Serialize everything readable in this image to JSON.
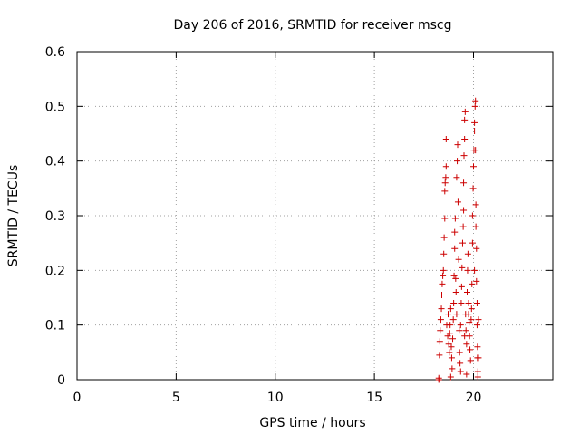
{
  "chart_data": {
    "type": "scatter",
    "title": "Day 206 of 2016, SRMTID for receiver mscg",
    "xlabel": "GPS time / hours",
    "ylabel": "SRMTID / TECUs",
    "xlim": [
      0,
      24
    ],
    "ylim": [
      0,
      0.6
    ],
    "xticks": [
      0,
      5,
      10,
      15,
      20
    ],
    "xtick_labels": [
      "0",
      "5",
      "10",
      "15",
      "20"
    ],
    "yticks": [
      0,
      0.1,
      0.2,
      0.3,
      0.4,
      0.5,
      0.6
    ],
    "ytick_labels": [
      "0",
      "0.1",
      "0.2",
      "0.3",
      "0.4",
      "0.5",
      "0.6"
    ],
    "grid": true,
    "marker": "+",
    "color": "#cc0000",
    "series": [
      {
        "name": "SRMTID",
        "points": [
          [
            18.25,
            0.0
          ],
          [
            18.25,
            0.003
          ],
          [
            18.28,
            0.045
          ],
          [
            18.3,
            0.07
          ],
          [
            18.32,
            0.09
          ],
          [
            18.35,
            0.11
          ],
          [
            18.38,
            0.13
          ],
          [
            18.4,
            0.155
          ],
          [
            18.42,
            0.175
          ],
          [
            18.45,
            0.19
          ],
          [
            18.48,
            0.2
          ],
          [
            18.5,
            0.23
          ],
          [
            18.52,
            0.26
          ],
          [
            18.55,
            0.295
          ],
          [
            18.55,
            0.345
          ],
          [
            18.57,
            0.36
          ],
          [
            18.6,
            0.37
          ],
          [
            18.62,
            0.39
          ],
          [
            18.62,
            0.44
          ],
          [
            18.65,
            0.1
          ],
          [
            18.7,
            0.08
          ],
          [
            18.72,
            0.12
          ],
          [
            18.75,
            0.065
          ],
          [
            18.78,
            0.05
          ],
          [
            18.8,
            0.085
          ],
          [
            18.82,
            0.1
          ],
          [
            18.85,
            0.13
          ],
          [
            18.88,
            0.06
          ],
          [
            18.9,
            0.04
          ],
          [
            18.92,
            0.02
          ],
          [
            18.95,
            0.075
          ],
          [
            18.98,
            0.11
          ],
          [
            19.0,
            0.14
          ],
          [
            19.02,
            0.19
          ],
          [
            19.05,
            0.24
          ],
          [
            19.05,
            0.27
          ],
          [
            19.08,
            0.295
          ],
          [
            19.1,
            0.185
          ],
          [
            19.12,
            0.16
          ],
          [
            19.15,
            0.12
          ],
          [
            19.15,
            0.37
          ],
          [
            19.18,
            0.4
          ],
          [
            19.2,
            0.43
          ],
          [
            19.22,
            0.325
          ],
          [
            19.25,
            0.22
          ],
          [
            19.28,
            0.09
          ],
          [
            19.3,
            0.05
          ],
          [
            19.32,
            0.03
          ],
          [
            19.35,
            0.1
          ],
          [
            19.38,
            0.14
          ],
          [
            19.4,
            0.17
          ],
          [
            19.42,
            0.205
          ],
          [
            19.45,
            0.25
          ],
          [
            19.48,
            0.28
          ],
          [
            19.5,
            0.31
          ],
          [
            19.5,
            0.36
          ],
          [
            19.52,
            0.41
          ],
          [
            19.55,
            0.44
          ],
          [
            19.55,
            0.475
          ],
          [
            19.58,
            0.49
          ],
          [
            19.6,
            0.12
          ],
          [
            19.62,
            0.09
          ],
          [
            19.65,
            0.065
          ],
          [
            19.68,
            0.16
          ],
          [
            19.7,
            0.2
          ],
          [
            19.72,
            0.23
          ],
          [
            19.75,
            0.14
          ],
          [
            19.78,
            0.105
          ],
          [
            19.8,
            0.08
          ],
          [
            19.82,
            0.055
          ],
          [
            19.85,
            0.035
          ],
          [
            19.88,
            0.11
          ],
          [
            19.9,
            0.13
          ],
          [
            19.92,
            0.175
          ],
          [
            19.95,
            0.25
          ],
          [
            19.95,
            0.3
          ],
          [
            19.98,
            0.35
          ],
          [
            20.0,
            0.39
          ],
          [
            20.02,
            0.42
          ],
          [
            20.05,
            0.455
          ],
          [
            20.05,
            0.47
          ],
          [
            20.08,
            0.5
          ],
          [
            20.1,
            0.51
          ],
          [
            20.1,
            0.42
          ],
          [
            20.12,
            0.32
          ],
          [
            20.12,
            0.28
          ],
          [
            20.15,
            0.24
          ],
          [
            20.15,
            0.18
          ],
          [
            20.18,
            0.14
          ],
          [
            20.18,
            0.1
          ],
          [
            20.2,
            0.06
          ],
          [
            20.2,
            0.04
          ],
          [
            20.22,
            0.015
          ],
          [
            20.22,
            0.005
          ],
          [
            20.25,
            0.04
          ],
          [
            20.25,
            0.11
          ],
          [
            19.55,
            0.08
          ],
          [
            19.35,
            0.015
          ],
          [
            18.85,
            0.005
          ],
          [
            19.65,
            0.01
          ],
          [
            19.75,
            0.12
          ],
          [
            20.05,
            0.2
          ]
        ]
      }
    ]
  }
}
